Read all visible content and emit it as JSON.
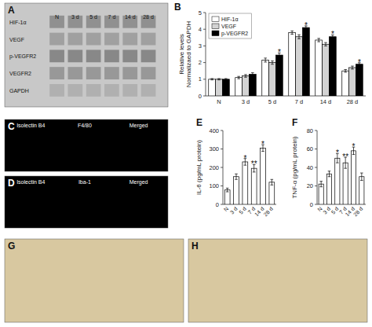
{
  "chart_data": [
    {
      "type": "image",
      "title": "A",
      "color": "#c8c8c8",
      "categories": [
        "N",
        "3 d",
        "5 d",
        "7 d",
        "14 d",
        "28 d"
      ],
      "annotations": [
        "HIF-1α",
        "VEGF",
        "p-VEGFR2",
        "VEGFR2",
        "GAPDH"
      ]
    },
    {
      "type": "bar",
      "title": "B",
      "categories": [
        "N",
        "3 d",
        "5 d",
        "7 d",
        "14 d",
        "28 d"
      ],
      "series": [
        {
          "name": "HIF-1α",
          "color": "white",
          "values": [
            1.0,
            1.1,
            2.15,
            3.8,
            3.35,
            1.5
          ],
          "errors": [
            0.04,
            0.07,
            0.12,
            0.1,
            0.1,
            0.08
          ]
        },
        {
          "name": "VEGF",
          "color": "lightgray",
          "values": [
            1.0,
            1.2,
            2.0,
            3.55,
            3.1,
            1.7
          ],
          "errors": [
            0.04,
            0.08,
            0.1,
            0.12,
            0.1,
            0.09
          ]
        },
        {
          "name": "p-VEGFR2",
          "color": "black",
          "values": [
            1.0,
            1.3,
            2.45,
            4.1,
            3.55,
            1.9
          ],
          "errors": [
            0.04,
            0.09,
            0.13,
            0.1,
            0.11,
            0.09
          ]
        }
      ],
      "ylabel": "Relative levels\nNormalizaed to GAPDH",
      "ylim": [
        0,
        5
      ],
      "yticks": [
        0,
        1,
        2,
        3,
        4,
        5
      ],
      "legend": "upper-left",
      "annotations": [
        {
          "text": "*",
          "category": "5 d"
        },
        {
          "text": "*",
          "category": "7 d"
        },
        {
          "text": "*",
          "category": "14 d"
        },
        {
          "text": "*",
          "category": "28 d"
        }
      ]
    },
    {
      "type": "image",
      "title": "C",
      "color": "black",
      "annotations": [
        "Isolectin B4",
        "F4/80",
        "Merged"
      ]
    },
    {
      "type": "image",
      "title": "D",
      "color": "black",
      "annotations": [
        "Isolectin B4",
        "Iba-1",
        "Merged"
      ]
    },
    {
      "type": "bar",
      "title": "E",
      "categories": [
        "N",
        "3 d",
        "5 d",
        "7 d",
        "14 d",
        "28 d"
      ],
      "values": [
        78,
        150,
        230,
        195,
        305,
        120
      ],
      "errors": [
        10,
        15,
        18,
        20,
        18,
        15
      ],
      "color": "white",
      "ylabel": "IL-6 (pg/mL protein)",
      "ylim": [
        0,
        400
      ],
      "yticks": [
        0,
        100,
        200,
        300,
        400
      ],
      "annotations": [
        {
          "text": "*",
          "category": "5 d"
        },
        {
          "text": "**",
          "category": "7 d"
        },
        {
          "text": "*",
          "category": "14 d"
        }
      ]
    },
    {
      "type": "bar",
      "title": "F",
      "categories": [
        "N",
        "3 d",
        "5 d",
        "7 d",
        "14 d",
        "28 d"
      ],
      "values": [
        22,
        33,
        50,
        45,
        58,
        30
      ],
      "errors": [
        3,
        3,
        5,
        6,
        4,
        4
      ],
      "color": "white",
      "ylabel": "TNF-α (pg/mL protein)",
      "ylim": [
        0,
        80
      ],
      "yticks": [
        0,
        20,
        40,
        60,
        80
      ],
      "annotations": [
        {
          "text": "*",
          "category": "5 d"
        },
        {
          "text": "**",
          "category": "7 d"
        },
        {
          "text": "*",
          "category": "14 d"
        }
      ]
    },
    {
      "type": "image",
      "title": "G",
      "color": "#d8c8a0"
    },
    {
      "type": "image",
      "title": "H",
      "color": "#d8c8a0"
    }
  ]
}
